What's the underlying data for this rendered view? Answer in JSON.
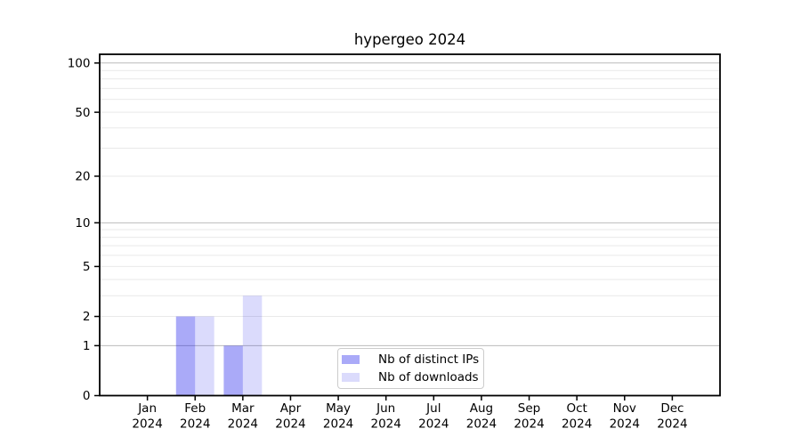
{
  "chart": {
    "title": "hypergeo 2024"
  },
  "legend": {
    "items": [
      {
        "label": "Nb of distinct IPs",
        "color": "rgba(25,25,235,0.37)"
      },
      {
        "label": "Nb of downloads",
        "color": "rgba(25,25,235,0.155)"
      }
    ]
  },
  "chart_data": {
    "type": "bar",
    "title": "hypergeo 2024",
    "categories": [
      "Jan",
      "Feb",
      "Mar",
      "Apr",
      "May",
      "Jun",
      "Jul",
      "Aug",
      "Sep",
      "Oct",
      "Nov",
      "Dec"
    ],
    "x_axis": {
      "year": "2024"
    },
    "series": [
      {
        "name": "Nb of distinct IPs",
        "color": "rgba(25,25,235,0.37)",
        "values": [
          0,
          2,
          1,
          0,
          0,
          0,
          0,
          0,
          0,
          0,
          0,
          0
        ]
      },
      {
        "name": "Nb of downloads",
        "color": "rgba(25,25,235,0.155)",
        "values": [
          0,
          2,
          3,
          0,
          0,
          0,
          0,
          0,
          0,
          0,
          0,
          0
        ]
      }
    ],
    "y_axis": {
      "scale": "log1p",
      "tick_values": [
        0,
        1,
        2,
        5,
        10,
        20,
        50,
        100
      ],
      "major_gridlines": [
        1,
        10,
        100
      ],
      "minor_gridlines": [
        2,
        3,
        4,
        5,
        6,
        7,
        8,
        9,
        20,
        30,
        40,
        50,
        60,
        70,
        80,
        90
      ],
      "top_value": 113,
      "ylim": [
        0,
        113
      ]
    },
    "grid": true,
    "legend_position": "lower center inside",
    "colors": {
      "major_grid": "#bcbcbc",
      "minor_grid": "#e9e9e9",
      "axis": "#000000",
      "text": "#000000"
    }
  }
}
